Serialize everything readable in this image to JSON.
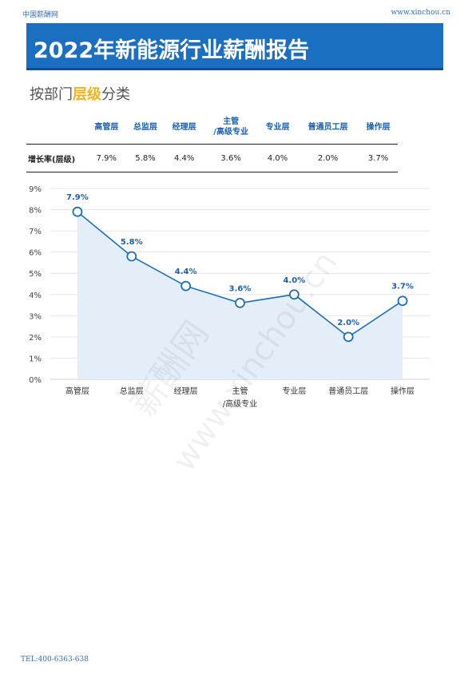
{
  "header": {
    "site_name": "中国薪酬网",
    "site_url": "www.xinchou.cn"
  },
  "banner": {
    "title": "2022年新能源行业薪酬报告"
  },
  "section": {
    "subtitle_prefix": "按部门",
    "subtitle_highlight": "层级",
    "subtitle_suffix": "分类"
  },
  "table": {
    "row_label": "增长率(层级)",
    "columns": [
      {
        "header": [
          "高管层"
        ],
        "value": "7.9%"
      },
      {
        "header": [
          "总监层"
        ],
        "value": "5.8%"
      },
      {
        "header": [
          "经理层"
        ],
        "value": "4.4%"
      },
      {
        "header": [
          "主管",
          "/高级专业"
        ],
        "value": "3.6%"
      },
      {
        "header": [
          "专业层"
        ],
        "value": "4.0%"
      },
      {
        "header": [
          "普通员工层"
        ],
        "value": "2.0%"
      },
      {
        "header": [
          "操作层"
        ],
        "value": "3.7%"
      }
    ]
  },
  "chart_data": {
    "type": "line",
    "categories": [
      [
        "高管层"
      ],
      [
        "总监层"
      ],
      [
        "经理层"
      ],
      [
        "主管",
        "/高级专业"
      ],
      [
        "专业层"
      ],
      [
        "普通员工层"
      ],
      [
        "操作层"
      ]
    ],
    "values": [
      7.9,
      5.8,
      4.4,
      3.6,
      4.0,
      2.0,
      3.7
    ],
    "data_labels": [
      "7.9%",
      "5.8%",
      "4.4%",
      "3.6%",
      "4.0%",
      "2.0%",
      "3.7%"
    ],
    "yticks": [
      "0%",
      "1%",
      "2%",
      "3%",
      "4%",
      "5%",
      "6%",
      "7%",
      "8%",
      "9%"
    ],
    "ylim": [
      0,
      9
    ],
    "grid": true,
    "line_color": "#1a6fc0",
    "area_color": "#e3eef8"
  },
  "watermark": {
    "text_1": "薪酬网",
    "text_2": "www.xinchou.cn"
  },
  "footer": {
    "tel": "TEL:400-6363-638"
  }
}
